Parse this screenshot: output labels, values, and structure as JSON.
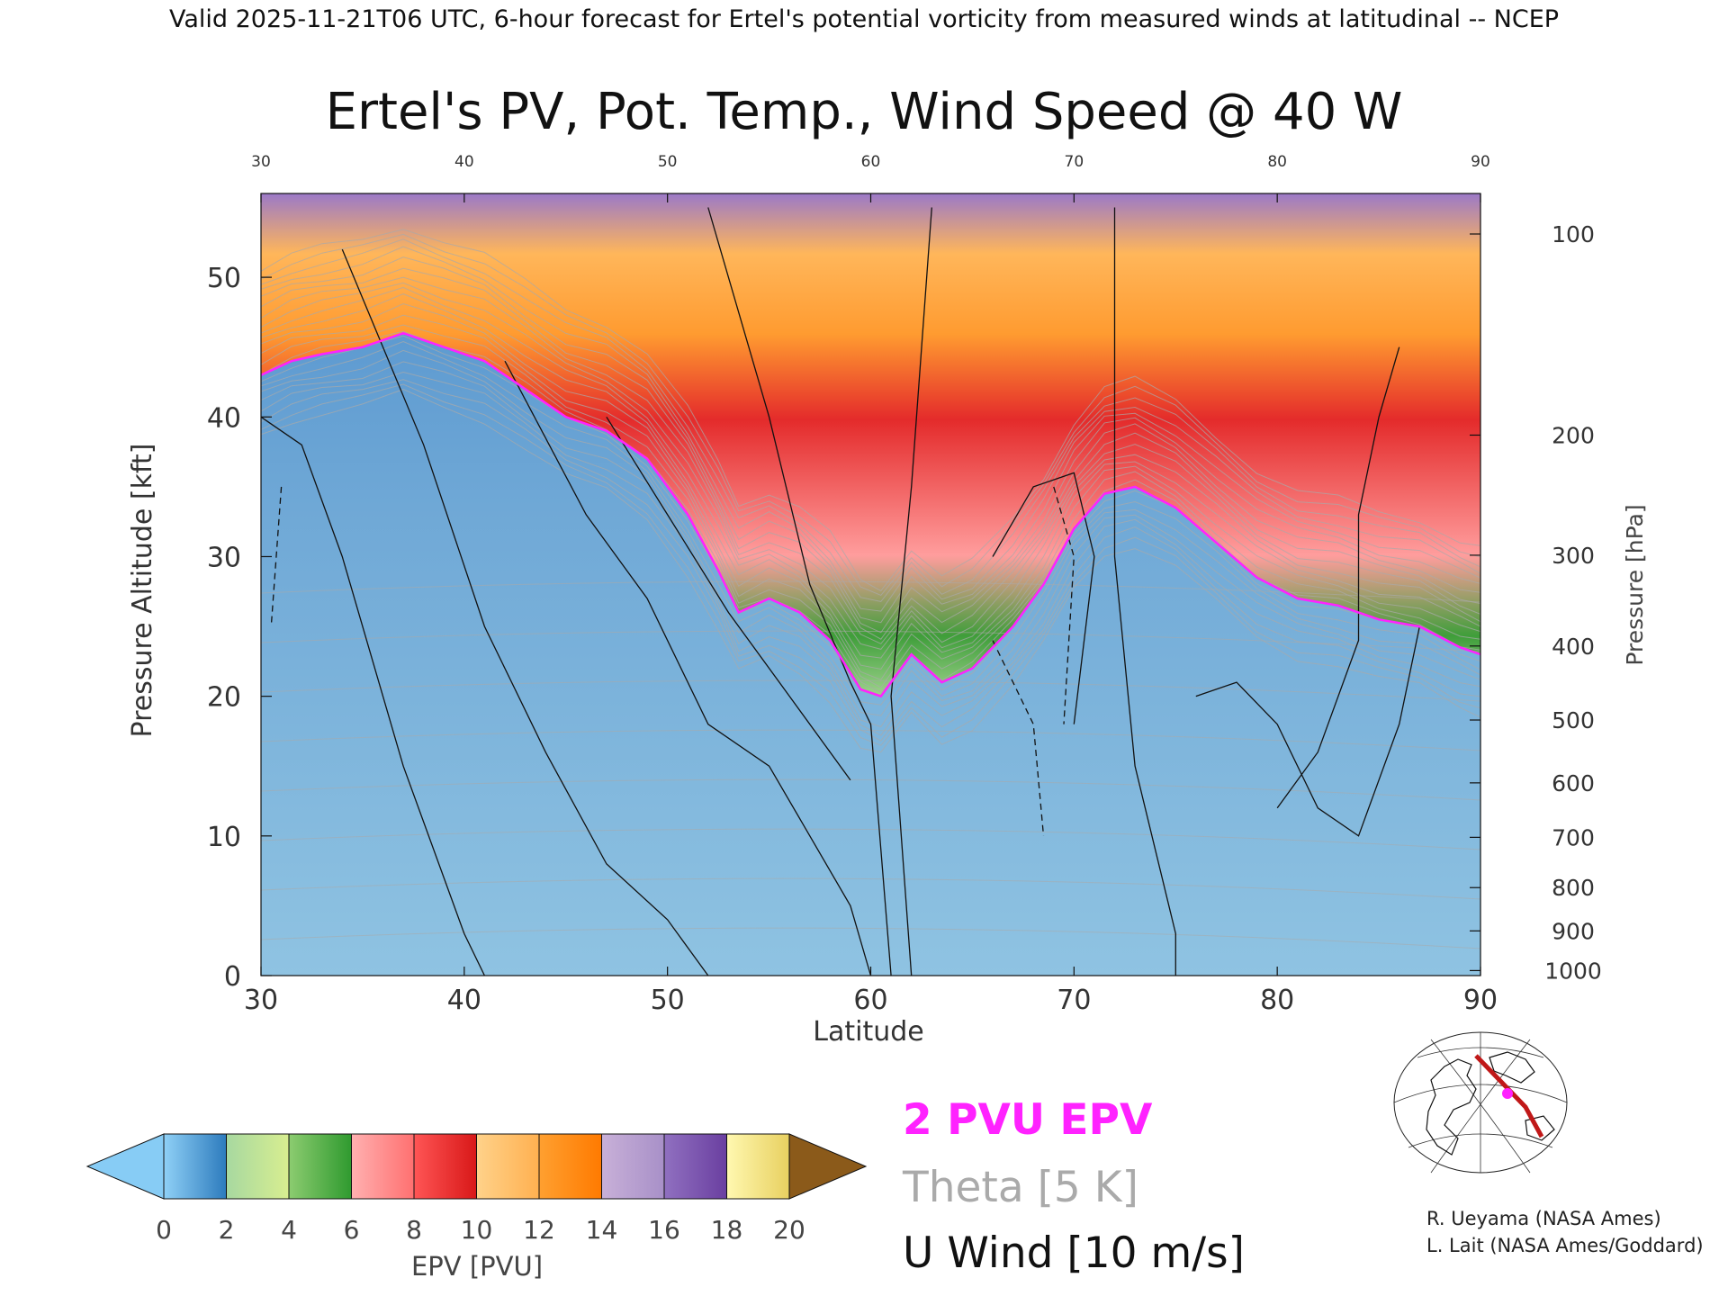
{
  "header": "Valid 2025-11-21T06 UTC, 6-hour forecast for Ertel's potential vorticity from measured winds at latitudinal -- NCEP",
  "colors": {
    "pv2": "#ff22ff",
    "theta": "#aaaaaa",
    "wind": "#111111"
  },
  "chart_data": {
    "type": "heatmap",
    "title": "Ertel's PV, Pot. Temp., Wind Speed @ 40 W",
    "xlabel": "Latitude",
    "ylabel": "Pressure Altitude [kft]",
    "ylabel_right": "Pressure [hPa]",
    "xlim": [
      30,
      90
    ],
    "ylim": [
      0,
      56
    ],
    "x_ticks": [
      30,
      40,
      50,
      60,
      70,
      80,
      90
    ],
    "top_ticks": [
      30,
      40,
      50,
      60,
      70,
      80,
      90
    ],
    "y_ticks": [
      0,
      10,
      20,
      30,
      40,
      50
    ],
    "pressure_ticks": [
      {
        "p": 1000,
        "kft": 0.36
      },
      {
        "p": 900,
        "kft": 3.2
      },
      {
        "p": 800,
        "kft": 6.3
      },
      {
        "p": 700,
        "kft": 9.9
      },
      {
        "p": 600,
        "kft": 13.8
      },
      {
        "p": 500,
        "kft": 18.3
      },
      {
        "p": 400,
        "kft": 23.6
      },
      {
        "p": 300,
        "kft": 30.1
      },
      {
        "p": 200,
        "kft": 38.7
      },
      {
        "p": 100,
        "kft": 53.1
      }
    ],
    "pv2_tropopause": {
      "lat": [
        30,
        31.5,
        33,
        35,
        37,
        39,
        41,
        43,
        45,
        47,
        49,
        51,
        52.5,
        53.5,
        55,
        56.5,
        58,
        59.5,
        60.5,
        62,
        63.5,
        65,
        67,
        68.5,
        70,
        71.5,
        73,
        75,
        77,
        79,
        81,
        83,
        85,
        87,
        89,
        90
      ],
      "kft": [
        43,
        44,
        44.5,
        45,
        46,
        45,
        44,
        42,
        40,
        39,
        37,
        33,
        29,
        26,
        27,
        26,
        24,
        20.5,
        20,
        23,
        21,
        22,
        25,
        28,
        32,
        34.5,
        35,
        33.5,
        31,
        28.5,
        27,
        26.5,
        25.5,
        25,
        23.5,
        23
      ]
    },
    "colorbar": {
      "label": "EPV [PVU]",
      "ticks": [
        0,
        2,
        4,
        6,
        8,
        10,
        12,
        14,
        16,
        18,
        20
      ],
      "bins": [
        [
          "#8fd0f6",
          "#2d7bbd"
        ],
        [
          "#a7d8a0",
          "#d8ee90"
        ],
        [
          "#8ccc70",
          "#2f9a2f"
        ],
        [
          "#ffb0b0",
          "#ff7070"
        ],
        [
          "#ff5555",
          "#d81818"
        ],
        [
          "#ffd28a",
          "#ffb050"
        ],
        [
          "#ffa030",
          "#ff7a00"
        ],
        [
          "#c8b0d8",
          "#a890c8"
        ],
        [
          "#9070c0",
          "#6a3fa0"
        ],
        [
          "#fff8b0",
          "#e8d060"
        ]
      ],
      "under_color": "#87ccf5",
      "over_color": "#8b5a1a"
    },
    "legend": {
      "pv2_label": "2 PVU EPV",
      "theta_label": "Theta [5 K]",
      "wind_label": "U Wind [10 m/s]"
    }
  },
  "credits": [
    "R. Ueyama (NASA Ames)",
    "L. Lait (NASA Ames/Goddard)"
  ]
}
